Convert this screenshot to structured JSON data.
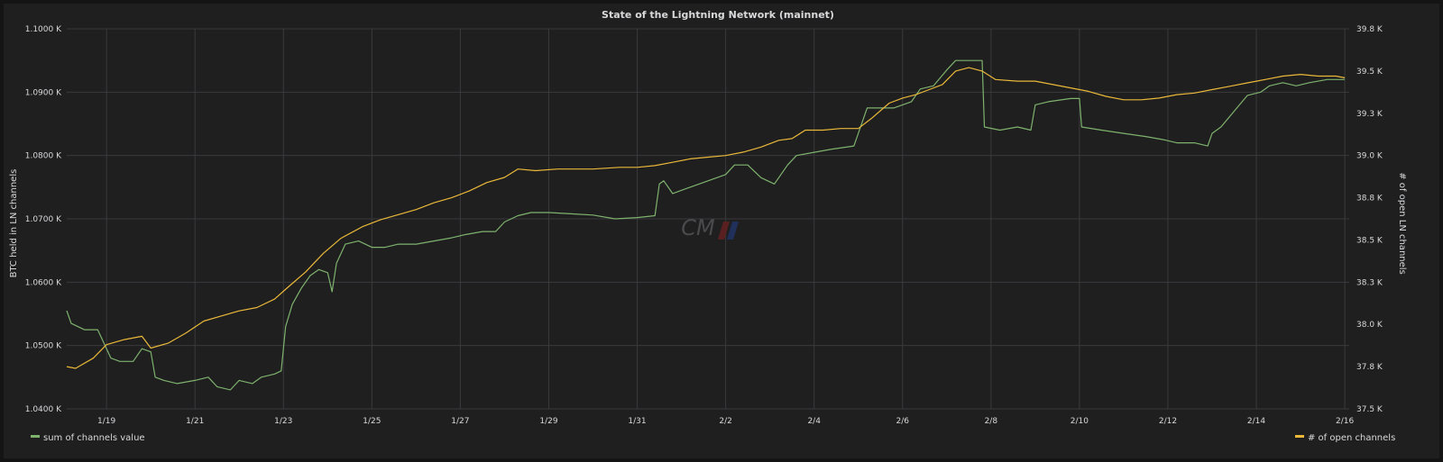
{
  "chart_data": {
    "type": "line",
    "title": "State of the Lightning Network (mainnet)",
    "ylabel_left": "BTC held in LN channels",
    "ylabel_right": "# of open LN channels",
    "x_ticks": [
      "1/19",
      "1/21",
      "1/23",
      "1/25",
      "1/27",
      "1/29",
      "1/31",
      "2/2",
      "2/4",
      "2/6",
      "2/8",
      "2/10",
      "2/12",
      "2/14",
      "2/16"
    ],
    "x_range": [
      18.1,
      47.1
    ],
    "y_left_ticks": [
      "1.0400 K",
      "1.0500 K",
      "1.0600 K",
      "1.0700 K",
      "1.0800 K",
      "1.0900 K",
      "1.1000 K"
    ],
    "y_left_range": [
      1040,
      1100
    ],
    "y_right_ticks": [
      "37.5 K",
      "37.8 K",
      "38.0 K",
      "38.3 K",
      "38.5 K",
      "38.8 K",
      "39.0 K",
      "39.3 K",
      "39.5 K",
      "39.8 K"
    ],
    "y_right_range": [
      37500,
      39750
    ],
    "grid": true,
    "legend_placement": "bottom",
    "watermark": "CM",
    "series": [
      {
        "name": "sum of channels value",
        "axis": "left",
        "color": "#7eb26d",
        "points": [
          [
            18.1,
            1055.5
          ],
          [
            18.2,
            1053.5
          ],
          [
            18.5,
            1052.5
          ],
          [
            18.8,
            1052.5
          ],
          [
            18.9,
            1051.0
          ],
          [
            19.0,
            1049.5
          ],
          [
            19.1,
            1048.0
          ],
          [
            19.3,
            1047.5
          ],
          [
            19.6,
            1047.5
          ],
          [
            19.8,
            1049.5
          ],
          [
            20.0,
            1049.0
          ],
          [
            20.1,
            1045.0
          ],
          [
            20.3,
            1044.5
          ],
          [
            20.6,
            1044.0
          ],
          [
            21.0,
            1044.5
          ],
          [
            21.3,
            1045.0
          ],
          [
            21.5,
            1043.5
          ],
          [
            21.8,
            1043.0
          ],
          [
            22.0,
            1044.5
          ],
          [
            22.3,
            1044.0
          ],
          [
            22.5,
            1045.0
          ],
          [
            22.8,
            1045.5
          ],
          [
            22.95,
            1046.0
          ],
          [
            23.05,
            1053.0
          ],
          [
            23.2,
            1056.5
          ],
          [
            23.4,
            1059.0
          ],
          [
            23.6,
            1061.0
          ],
          [
            23.8,
            1062.0
          ],
          [
            24.0,
            1061.5
          ],
          [
            24.1,
            1058.5
          ],
          [
            24.2,
            1063.0
          ],
          [
            24.4,
            1066.0
          ],
          [
            24.7,
            1066.5
          ],
          [
            25.0,
            1065.5
          ],
          [
            25.3,
            1065.5
          ],
          [
            25.6,
            1066.0
          ],
          [
            26.0,
            1066.0
          ],
          [
            26.4,
            1066.5
          ],
          [
            26.8,
            1067.0
          ],
          [
            27.1,
            1067.5
          ],
          [
            27.5,
            1068.0
          ],
          [
            27.8,
            1068.0
          ],
          [
            28.0,
            1069.5
          ],
          [
            28.3,
            1070.5
          ],
          [
            28.6,
            1071.0
          ],
          [
            29.0,
            1071.0
          ],
          [
            29.5,
            1070.8
          ],
          [
            30.0,
            1070.6
          ],
          [
            30.5,
            1070.0
          ],
          [
            31.0,
            1070.2
          ],
          [
            31.4,
            1070.5
          ],
          [
            31.5,
            1075.5
          ],
          [
            31.6,
            1076.0
          ],
          [
            31.8,
            1074.0
          ],
          [
            32.2,
            1075.0
          ],
          [
            32.6,
            1076.0
          ],
          [
            33.0,
            1077.0
          ],
          [
            33.2,
            1078.5
          ],
          [
            33.5,
            1078.5
          ],
          [
            33.8,
            1076.5
          ],
          [
            34.1,
            1075.5
          ],
          [
            34.4,
            1078.5
          ],
          [
            34.6,
            1080.0
          ],
          [
            35.0,
            1080.5
          ],
          [
            35.4,
            1081.0
          ],
          [
            35.9,
            1081.5
          ],
          [
            36.0,
            1083.5
          ],
          [
            36.2,
            1087.5
          ],
          [
            36.5,
            1087.5
          ],
          [
            36.8,
            1087.5
          ],
          [
            37.0,
            1088.0
          ],
          [
            37.2,
            1088.5
          ],
          [
            37.4,
            1090.5
          ],
          [
            37.7,
            1091.0
          ],
          [
            38.0,
            1093.5
          ],
          [
            38.2,
            1095.0
          ],
          [
            38.5,
            1095.0
          ],
          [
            38.8,
            1095.0
          ],
          [
            38.85,
            1084.5
          ],
          [
            39.2,
            1084.0
          ],
          [
            39.6,
            1084.5
          ],
          [
            39.9,
            1084.0
          ],
          [
            40.0,
            1088.0
          ],
          [
            40.3,
            1088.5
          ],
          [
            40.8,
            1089.0
          ],
          [
            41.0,
            1089.0
          ],
          [
            41.05,
            1084.5
          ],
          [
            41.5,
            1084.0
          ],
          [
            42.0,
            1083.5
          ],
          [
            42.5,
            1083.0
          ],
          [
            42.9,
            1082.5
          ],
          [
            43.2,
            1082.0
          ],
          [
            43.6,
            1082.0
          ],
          [
            43.9,
            1081.5
          ],
          [
            44.0,
            1083.5
          ],
          [
            44.2,
            1084.5
          ],
          [
            44.5,
            1087.0
          ],
          [
            44.8,
            1089.5
          ],
          [
            45.1,
            1090.0
          ],
          [
            45.3,
            1091.0
          ],
          [
            45.6,
            1091.5
          ],
          [
            45.9,
            1091.0
          ],
          [
            46.2,
            1091.5
          ],
          [
            46.6,
            1092.0
          ],
          [
            47.0,
            1092.0
          ]
        ]
      },
      {
        "name": "# of open channels",
        "axis": "right",
        "color": "#eab839",
        "points": [
          [
            18.1,
            37750
          ],
          [
            18.3,
            37740
          ],
          [
            18.7,
            37800
          ],
          [
            19.0,
            37880
          ],
          [
            19.4,
            37910
          ],
          [
            19.8,
            37930
          ],
          [
            20.0,
            37860
          ],
          [
            20.4,
            37890
          ],
          [
            20.8,
            37950
          ],
          [
            21.2,
            38020
          ],
          [
            21.6,
            38050
          ],
          [
            22.0,
            38080
          ],
          [
            22.4,
            38100
          ],
          [
            22.8,
            38150
          ],
          [
            23.1,
            38220
          ],
          [
            23.5,
            38310
          ],
          [
            23.9,
            38420
          ],
          [
            24.3,
            38510
          ],
          [
            24.8,
            38580
          ],
          [
            25.2,
            38620
          ],
          [
            25.6,
            38650
          ],
          [
            26.0,
            38680
          ],
          [
            26.4,
            38720
          ],
          [
            26.8,
            38750
          ],
          [
            27.2,
            38790
          ],
          [
            27.6,
            38840
          ],
          [
            28.0,
            38870
          ],
          [
            28.3,
            38920
          ],
          [
            28.7,
            38910
          ],
          [
            29.2,
            38920
          ],
          [
            29.6,
            38920
          ],
          [
            30.0,
            38920
          ],
          [
            30.6,
            38930
          ],
          [
            31.0,
            38930
          ],
          [
            31.4,
            38940
          ],
          [
            31.8,
            38960
          ],
          [
            32.2,
            38980
          ],
          [
            32.6,
            38990
          ],
          [
            33.0,
            39000
          ],
          [
            33.4,
            39020
          ],
          [
            33.8,
            39050
          ],
          [
            34.2,
            39090
          ],
          [
            34.5,
            39100
          ],
          [
            34.8,
            39150
          ],
          [
            35.2,
            39150
          ],
          [
            35.6,
            39160
          ],
          [
            36.0,
            39160
          ],
          [
            36.3,
            39220
          ],
          [
            36.7,
            39310
          ],
          [
            37.0,
            39340
          ],
          [
            37.3,
            39360
          ],
          [
            37.6,
            39390
          ],
          [
            37.9,
            39420
          ],
          [
            38.2,
            39500
          ],
          [
            38.5,
            39520
          ],
          [
            38.8,
            39500
          ],
          [
            39.1,
            39450
          ],
          [
            39.6,
            39440
          ],
          [
            40.0,
            39440
          ],
          [
            40.4,
            39420
          ],
          [
            40.8,
            39400
          ],
          [
            41.2,
            39380
          ],
          [
            41.6,
            39350
          ],
          [
            42.0,
            39330
          ],
          [
            42.4,
            39330
          ],
          [
            42.8,
            39340
          ],
          [
            43.2,
            39360
          ],
          [
            43.6,
            39370
          ],
          [
            44.0,
            39390
          ],
          [
            44.4,
            39410
          ],
          [
            44.8,
            39430
          ],
          [
            45.2,
            39450
          ],
          [
            45.6,
            39470
          ],
          [
            46.0,
            39480
          ],
          [
            46.4,
            39470
          ],
          [
            46.8,
            39470
          ],
          [
            47.0,
            39460
          ]
        ]
      }
    ]
  }
}
